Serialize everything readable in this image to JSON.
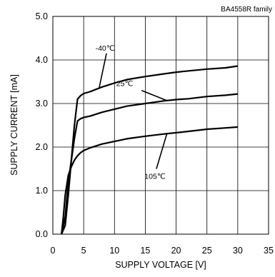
{
  "chart_data": {
    "type": "line",
    "family_label": "BA4558R  family",
    "xlabel": "SUPPLY VOLTAGE [V]",
    "ylabel": "SUPPLY CURRENT [mA]",
    "xlim": [
      0,
      35
    ],
    "ylim": [
      0,
      5
    ],
    "x_ticks": [
      "0",
      "5",
      "10",
      "15",
      "20",
      "25",
      "30",
      "35"
    ],
    "y_ticks": [
      "0.0",
      "1.0",
      "2.0",
      "3.0",
      "4.0",
      "5.0"
    ],
    "grid": true,
    "line_color": "#000000",
    "series": [
      {
        "name": "-40℃",
        "points": [
          [
            1.4,
            0
          ],
          [
            2,
            0.2
          ],
          [
            2.5,
            0.9
          ],
          [
            3,
            1.7
          ],
          [
            3.5,
            2.5
          ],
          [
            4,
            3.1
          ],
          [
            4.5,
            3.18
          ],
          [
            5,
            3.23
          ],
          [
            6,
            3.27
          ],
          [
            8,
            3.38
          ],
          [
            10,
            3.47
          ],
          [
            12,
            3.55
          ],
          [
            15,
            3.62
          ],
          [
            18,
            3.68
          ],
          [
            20,
            3.72
          ],
          [
            22,
            3.75
          ],
          [
            25,
            3.79
          ],
          [
            28,
            3.82
          ],
          [
            30,
            3.86
          ]
        ]
      },
      {
        "name": "25℃",
        "points": [
          [
            1.4,
            0
          ],
          [
            2,
            0.4
          ],
          [
            2.5,
            1.2
          ],
          [
            3,
            1.7
          ],
          [
            3.5,
            2.2
          ],
          [
            4,
            2.6
          ],
          [
            4.5,
            2.65
          ],
          [
            5,
            2.68
          ],
          [
            6,
            2.71
          ],
          [
            8,
            2.8
          ],
          [
            10,
            2.87
          ],
          [
            12,
            2.94
          ],
          [
            15,
            3.0
          ],
          [
            18,
            3.06
          ],
          [
            20,
            3.09
          ],
          [
            22,
            3.11
          ],
          [
            25,
            3.16
          ],
          [
            28,
            3.19
          ],
          [
            30,
            3.22
          ]
        ]
      },
      {
        "name": "105℃",
        "points": [
          [
            1.4,
            0
          ],
          [
            1.7,
            0.4
          ],
          [
            2,
            0.9
          ],
          [
            2.5,
            1.35
          ],
          [
            3,
            1.55
          ],
          [
            3.5,
            1.7
          ],
          [
            4,
            1.8
          ],
          [
            4.5,
            1.87
          ],
          [
            5,
            1.92
          ],
          [
            6,
            1.98
          ],
          [
            8,
            2.07
          ],
          [
            10,
            2.13
          ],
          [
            12,
            2.19
          ],
          [
            15,
            2.25
          ],
          [
            18,
            2.3
          ],
          [
            20,
            2.33
          ],
          [
            22,
            2.36
          ],
          [
            25,
            2.41
          ],
          [
            28,
            2.44
          ],
          [
            30,
            2.46
          ]
        ]
      }
    ],
    "annotations": [
      {
        "text": "-40℃",
        "series": 0,
        "at_x": 7.5,
        "label_x": 8.7,
        "label_y": 4.15
      },
      {
        "text": "25℃",
        "series": 1,
        "at_x": 18.5,
        "label_x": 14.4,
        "label_y": 3.3
      },
      {
        "text": "105℃",
        "series": 2,
        "at_x": 18.5,
        "label_x": 16.8,
        "label_y": 1.5
      }
    ]
  }
}
